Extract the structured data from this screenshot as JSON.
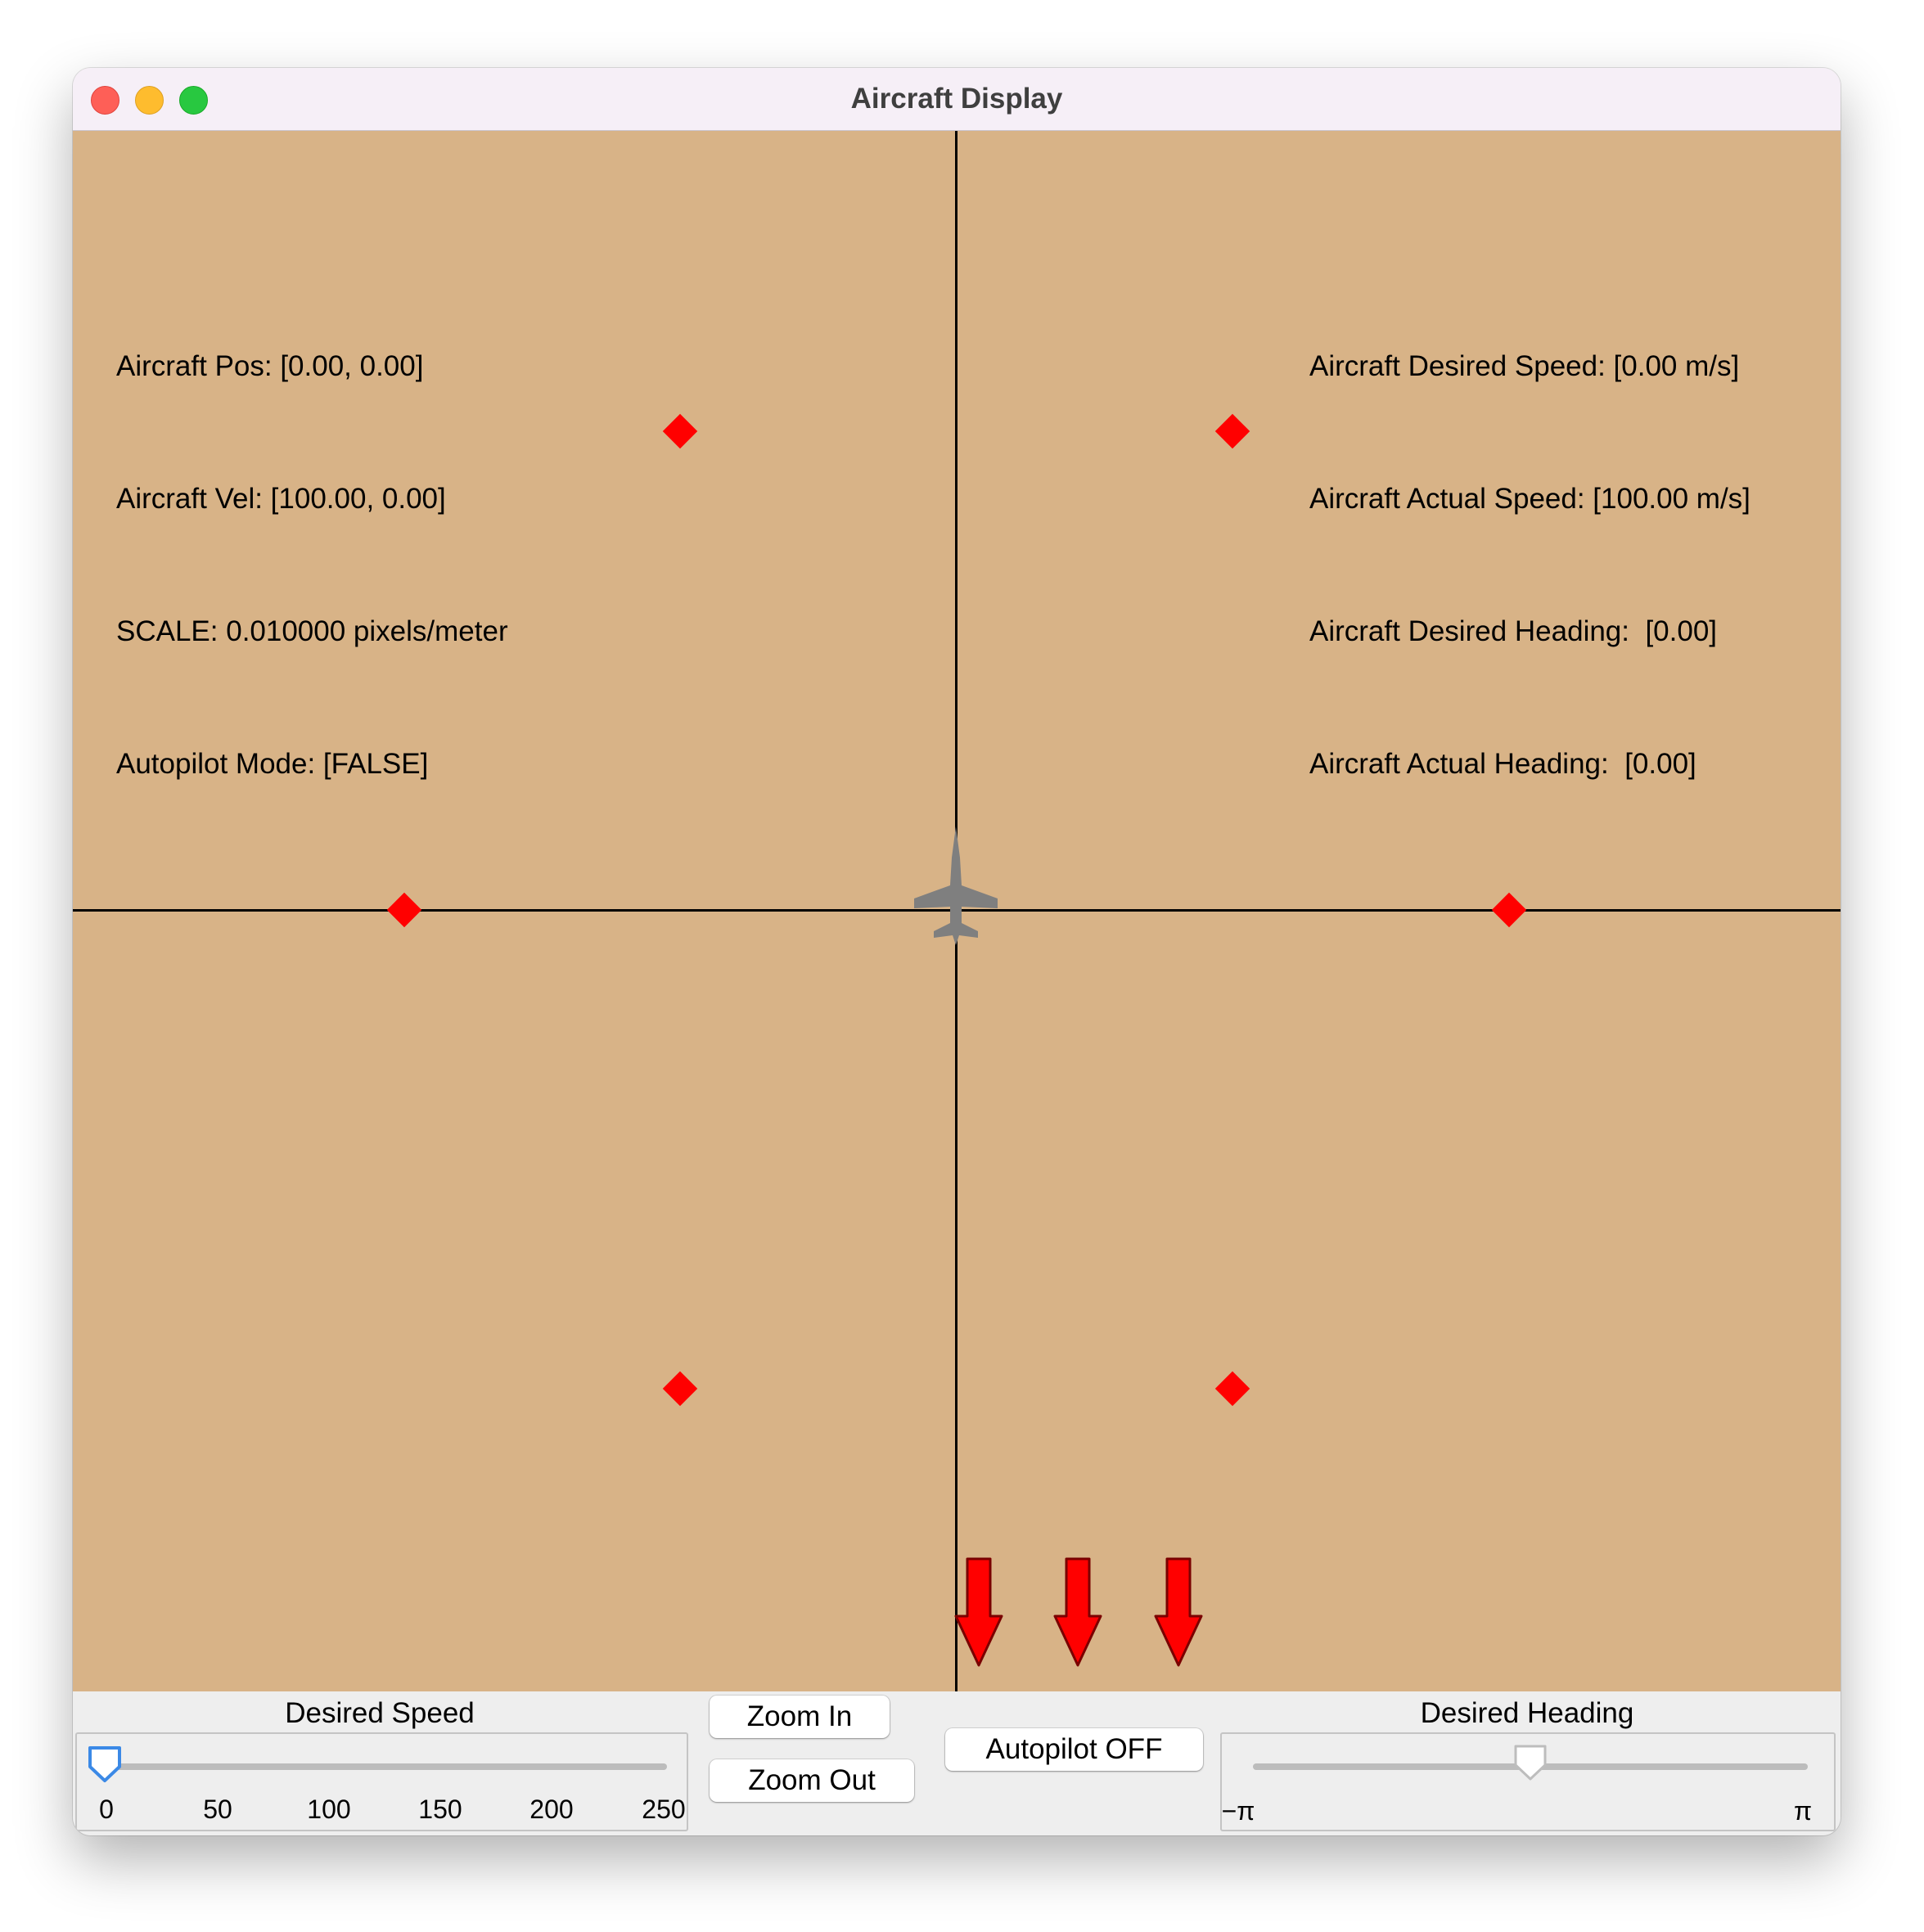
{
  "window": {
    "title": "Aircraft Display",
    "traffic_lights": [
      "close",
      "minimize",
      "zoom"
    ]
  },
  "colors": {
    "viewport_background": "#d8b387",
    "waypoint": "#ff0000",
    "aircraft": "#7f7f7f",
    "axis": "#000000",
    "annotation_arrow": "#ff0000"
  },
  "info_left": {
    "pos": "Aircraft Pos: [0.00, 0.00]",
    "vel": "Aircraft Vel: [100.00, 0.00]",
    "scale": "SCALE: 0.010000 pixels/meter",
    "autopilot": "Autopilot Mode: [FALSE]"
  },
  "info_right": {
    "desired_speed": "Aircraft Desired Speed: [0.00 m/s]",
    "actual_speed": "Aircraft Actual Speed: [100.00 m/s]",
    "desired_heading": "Aircraft Desired Heading:  [0.00]",
    "actual_heading": "Aircraft Actual Heading:  [0.00]"
  },
  "waypoint_count": 6,
  "speed_slider": {
    "title": "Desired Speed",
    "ticks": [
      "0",
      "50",
      "100",
      "150",
      "200",
      "250"
    ],
    "min": 0,
    "max": 250,
    "value": 0
  },
  "heading_slider": {
    "title": "Desired Heading",
    "min_label": "−π",
    "max_label": "π",
    "value": 0
  },
  "buttons": {
    "zoom_in": "Zoom In",
    "zoom_out": "Zoom Out",
    "autopilot": "Autopilot OFF"
  },
  "annotation_arrow_count": 3
}
